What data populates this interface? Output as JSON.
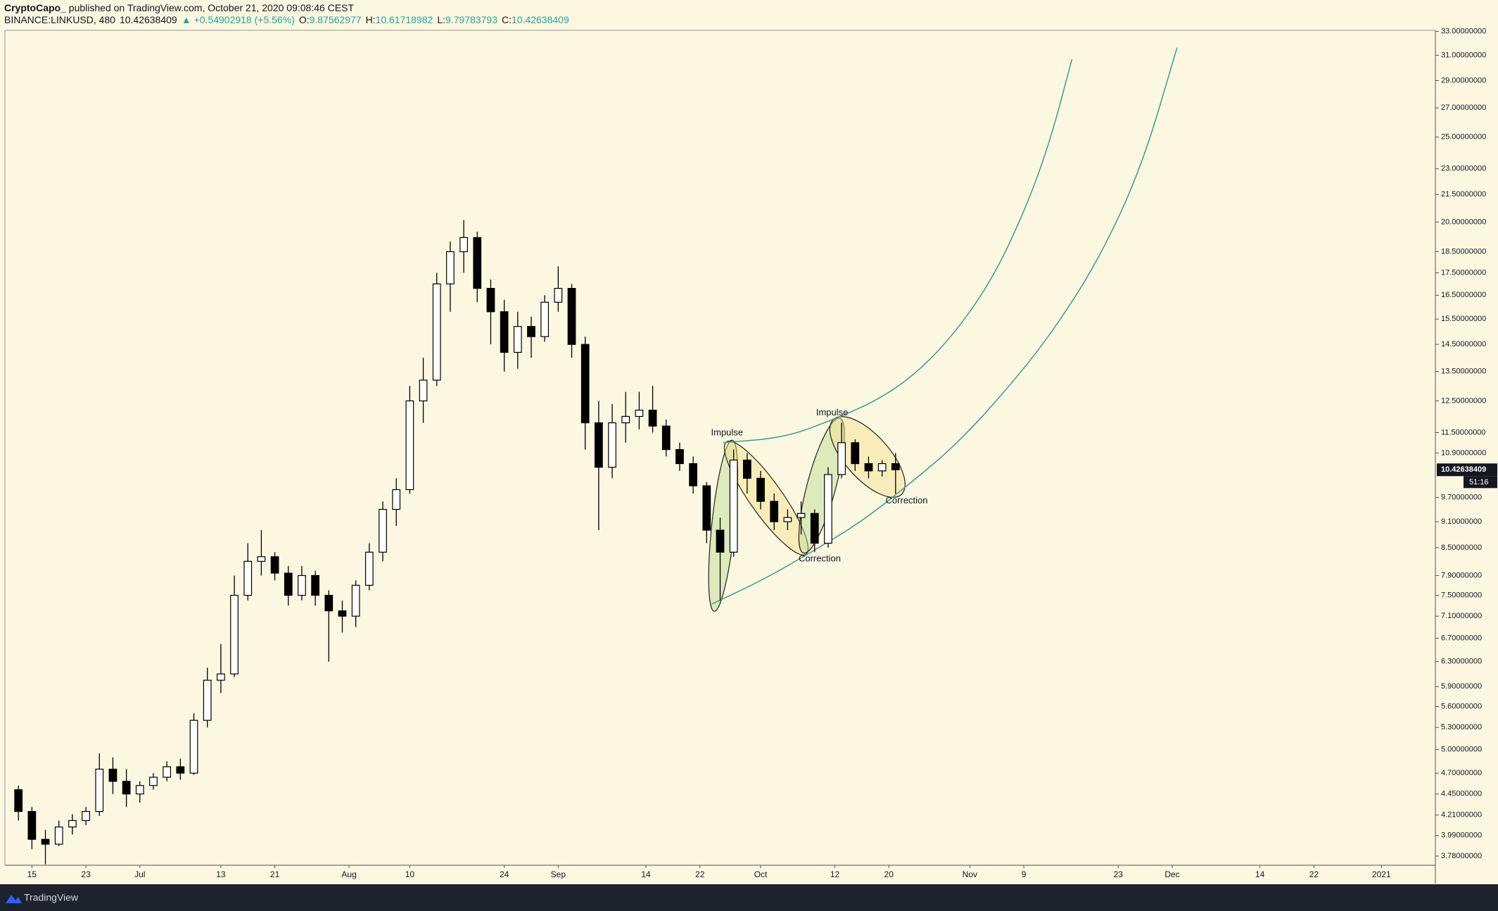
{
  "header": {
    "author": "CryptoCapo_",
    "published": " published on TradingView.com, October 21, 2020 09:08:46 CEST",
    "symbol": "BINANCE:LINKUSD, 480",
    "last": "10.42638409",
    "arrow": "▲",
    "change": "+0.54902918 (+5.56%)",
    "o_label": "O:",
    "o_value": "9.87562977",
    "h_label": "H:",
    "h_value": "10.61718982",
    "l_label": "L:",
    "l_value": "9.79783793",
    "c_label": "C:",
    "c_value": "10.42638409"
  },
  "chart_data": {
    "type": "candlestick",
    "log_scale": true,
    "grid": false,
    "up_color": "#ffffff",
    "down_color": "#000000",
    "wick_color": "#000000",
    "x": [
      "2020-06-12",
      "2020-06-14",
      "2020-06-16",
      "2020-06-18",
      "2020-06-20",
      "2020-06-22",
      "2020-06-24",
      "2020-06-26",
      "2020-06-28",
      "2020-06-30",
      "2020-07-02",
      "2020-07-04",
      "2020-07-06",
      "2020-07-08",
      "2020-07-10",
      "2020-07-12",
      "2020-07-14",
      "2020-07-16",
      "2020-07-18",
      "2020-07-20",
      "2020-07-22",
      "2020-07-24",
      "2020-07-26",
      "2020-07-28",
      "2020-07-30",
      "2020-08-01",
      "2020-08-03",
      "2020-08-05",
      "2020-08-07",
      "2020-08-09",
      "2020-08-11",
      "2020-08-13",
      "2020-08-15",
      "2020-08-17",
      "2020-08-19",
      "2020-08-21",
      "2020-08-23",
      "2020-08-25",
      "2020-08-27",
      "2020-08-29",
      "2020-08-31",
      "2020-09-02",
      "2020-09-04",
      "2020-09-06",
      "2020-09-08",
      "2020-09-10",
      "2020-09-12",
      "2020-09-14",
      "2020-09-16",
      "2020-09-18",
      "2020-09-20",
      "2020-09-22",
      "2020-09-24",
      "2020-09-26",
      "2020-09-28",
      "2020-09-30",
      "2020-10-02",
      "2020-10-04",
      "2020-10-06",
      "2020-10-08",
      "2020-10-10",
      "2020-10-12",
      "2020-10-14",
      "2020-10-16",
      "2020-10-18",
      "2020-10-20"
    ],
    "open": [
      4.5,
      4.25,
      3.95,
      3.9,
      4.08,
      4.15,
      4.25,
      4.75,
      4.6,
      4.45,
      4.55,
      4.65,
      4.78,
      4.7,
      5.4,
      6.0,
      6.1,
      7.5,
      8.2,
      8.3,
      7.95,
      7.5,
      7.9,
      7.5,
      7.2,
      7.1,
      7.7,
      8.4,
      9.4,
      9.9,
      12.5,
      13.2,
      17.0,
      18.5,
      19.2,
      16.8,
      15.8,
      14.2,
      15.2,
      14.8,
      16.2,
      16.8,
      14.5,
      11.8,
      10.5,
      11.8,
      12.0,
      12.2,
      11.7,
      11.0,
      10.6,
      10.0,
      8.9,
      8.4,
      10.7,
      10.2,
      9.6,
      9.1,
      9.2,
      9.3,
      8.6,
      10.3,
      11.2,
      10.6,
      10.4,
      10.6
    ],
    "high": [
      4.55,
      4.3,
      4.05,
      4.15,
      4.22,
      4.3,
      4.95,
      4.9,
      4.75,
      4.6,
      4.7,
      4.85,
      4.88,
      5.5,
      6.2,
      6.6,
      7.9,
      8.6,
      8.9,
      8.4,
      8.1,
      8.1,
      8.0,
      7.6,
      7.4,
      7.8,
      8.6,
      9.6,
      10.2,
      13.0,
      14.0,
      17.5,
      19.0,
      20.1,
      19.5,
      17.2,
      16.3,
      15.8,
      15.6,
      16.5,
      17.8,
      17.0,
      14.8,
      12.5,
      12.4,
      12.8,
      12.8,
      13.0,
      11.9,
      11.2,
      10.8,
      10.1,
      9.2,
      11.0,
      10.9,
      10.4,
      9.8,
      9.4,
      9.6,
      9.4,
      10.5,
      11.8,
      11.3,
      10.8,
      10.7,
      10.9
    ],
    "low": [
      4.15,
      3.85,
      3.7,
      3.88,
      4.0,
      4.1,
      4.2,
      4.45,
      4.3,
      4.35,
      4.5,
      4.6,
      4.62,
      4.68,
      5.3,
      5.8,
      6.05,
      7.4,
      7.9,
      7.8,
      7.3,
      7.4,
      7.3,
      6.3,
      6.8,
      6.9,
      7.6,
      8.2,
      9.0,
      9.8,
      11.8,
      13.0,
      15.8,
      17.5,
      16.2,
      14.5,
      13.5,
      13.6,
      14.0,
      14.6,
      15.8,
      14.0,
      11.0,
      8.9,
      10.2,
      11.2,
      11.6,
      11.5,
      10.8,
      10.4,
      9.8,
      8.6,
      7.4,
      8.3,
      9.8,
      9.4,
      8.9,
      8.9,
      8.8,
      8.4,
      8.5,
      10.2,
      10.4,
      10.2,
      10.25,
      9.79
    ],
    "close": [
      4.25,
      3.95,
      3.9,
      4.08,
      4.15,
      4.25,
      4.75,
      4.6,
      4.45,
      4.55,
      4.65,
      4.78,
      4.7,
      5.4,
      6.0,
      6.1,
      7.5,
      8.2,
      8.3,
      7.95,
      7.5,
      7.9,
      7.5,
      7.2,
      7.1,
      7.7,
      8.4,
      9.4,
      9.9,
      12.5,
      13.2,
      17.0,
      18.5,
      19.2,
      16.8,
      15.8,
      14.2,
      15.2,
      14.8,
      16.2,
      16.8,
      14.5,
      11.8,
      10.5,
      11.8,
      12.0,
      12.2,
      11.7,
      11.0,
      10.6,
      10.0,
      8.9,
      8.4,
      10.7,
      10.2,
      9.6,
      9.1,
      9.2,
      9.3,
      8.6,
      10.3,
      11.2,
      10.6,
      10.4,
      10.6,
      10.43
    ],
    "xlim": [
      "2020-06-11",
      "2021-01-09"
    ],
    "xticks": [
      {
        "value": "2020-06-15",
        "label": "15"
      },
      {
        "value": "2020-06-23",
        "label": "23"
      },
      {
        "value": "2020-07-01",
        "label": "Jul"
      },
      {
        "value": "2020-07-13",
        "label": "13"
      },
      {
        "value": "2020-07-21",
        "label": "21"
      },
      {
        "value": "2020-08-01",
        "label": "Aug"
      },
      {
        "value": "2020-08-10",
        "label": "10"
      },
      {
        "value": "2020-08-24",
        "label": "24"
      },
      {
        "value": "2020-09-01",
        "label": "Sep"
      },
      {
        "value": "2020-09-14",
        "label": "14"
      },
      {
        "value": "2020-09-22",
        "label": "22"
      },
      {
        "value": "2020-10-01",
        "label": "Oct"
      },
      {
        "value": "2020-10-12",
        "label": "12"
      },
      {
        "value": "2020-10-20",
        "label": "20"
      },
      {
        "value": "2020-11-01",
        "label": "Nov"
      },
      {
        "value": "2020-11-09",
        "label": "9"
      },
      {
        "value": "2020-11-23",
        "label": "23"
      },
      {
        "value": "2020-12-01",
        "label": "Dec"
      },
      {
        "value": "2020-12-14",
        "label": "14"
      },
      {
        "value": "2020-12-22",
        "label": "22"
      },
      {
        "value": "2021-01-01",
        "label": "2021"
      }
    ],
    "ylim": [
      3.69,
      33.1
    ],
    "yticks": [
      {
        "value": 3.78,
        "label": "3.78000000"
      },
      {
        "value": 3.99,
        "label": "3.99000000"
      },
      {
        "value": 4.21,
        "label": "4.21000000"
      },
      {
        "value": 4.45,
        "label": "4.45000000"
      },
      {
        "value": 4.7,
        "label": "4.70000000"
      },
      {
        "value": 5,
        "label": "5.00000000"
      },
      {
        "value": 5.3,
        "label": "5.30000000"
      },
      {
        "value": 5.6,
        "label": "5.60000000"
      },
      {
        "value": 5.9,
        "label": "5.90000000"
      },
      {
        "value": 6.3,
        "label": "6.30000000"
      },
      {
        "value": 6.7,
        "label": "6.70000000"
      },
      {
        "value": 7.1,
        "label": "7.10000000"
      },
      {
        "value": 7.5,
        "label": "7.50000000"
      },
      {
        "value": 7.9,
        "label": "7.90000000"
      },
      {
        "value": 8.5,
        "label": "8.50000000"
      },
      {
        "value": 9.1,
        "label": "9.10000000"
      },
      {
        "value": 9.7,
        "label": "9.70000000"
      },
      {
        "value": 10.9,
        "label": "10.90000000"
      },
      {
        "value": 11.5,
        "label": "11.50000000"
      },
      {
        "value": 12.5,
        "label": "12.50000000"
      },
      {
        "value": 13.5,
        "label": "13.50000000"
      },
      {
        "value": 14.5,
        "label": "14.50000000"
      },
      {
        "value": 15.5,
        "label": "15.50000000"
      },
      {
        "value": 16.5,
        "label": "16.50000000"
      },
      {
        "value": 17.5,
        "label": "17.50000000"
      },
      {
        "value": 18.5,
        "label": "18.50000000"
      },
      {
        "value": 20,
        "label": "20.00000000"
      },
      {
        "value": 21.5,
        "label": "21.50000000"
      },
      {
        "value": 23,
        "label": "23.00000000"
      },
      {
        "value": 25,
        "label": "25.00000000"
      },
      {
        "value": 27,
        "label": "27.00000000"
      },
      {
        "value": 29,
        "label": "29.00000000"
      },
      {
        "value": 31,
        "label": "31.00000000"
      },
      {
        "value": 33,
        "label": "33.00000000"
      }
    ],
    "last_price_label": "10.42638409",
    "countdown": "51:16",
    "annotations": [
      "Impulse",
      "Correction",
      "Impulse",
      "Correction"
    ]
  },
  "footer": {
    "brand": "TradingView"
  }
}
